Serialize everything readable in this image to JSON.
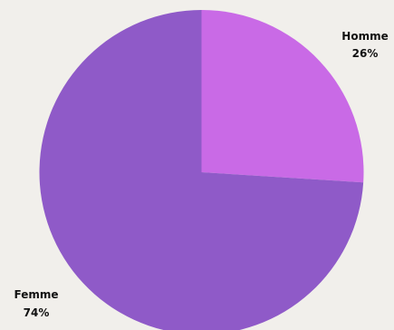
{
  "chart_data": {
    "type": "pie",
    "title": "",
    "start_angle_deg": 0,
    "direction": "clockwise",
    "slices": [
      {
        "name": "Homme",
        "label": "Homme",
        "value": 26,
        "value_label": "26%",
        "color": "#c96ae6"
      },
      {
        "name": "Femme",
        "label": "Femme",
        "value": 74,
        "value_label": "74%",
        "color": "#8f5ac8"
      }
    ],
    "legend": "none"
  },
  "background_color": "#f1efeb"
}
